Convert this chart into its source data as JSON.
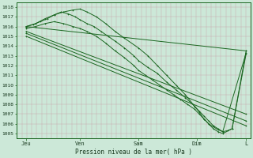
{
  "bg_color": "#cce8d8",
  "line_color": "#1a6620",
  "yticks": [
    1005,
    1006,
    1007,
    1008,
    1009,
    1010,
    1011,
    1012,
    1013,
    1014,
    1015,
    1016,
    1017,
    1018
  ],
  "ylim": [
    1004.5,
    1018.5
  ],
  "xlim": [
    0.0,
    1.0
  ],
  "xtick_positions": [
    0.04,
    0.27,
    0.52,
    0.77,
    0.98
  ],
  "xtick_labels": [
    "Jeu",
    "Ven",
    "Sam",
    "Dim",
    "L"
  ],
  "xlabel": "Pression niveau de la mer( hPa )",
  "vgrid_n": 48,
  "lines": [
    {
      "x": [
        0.04,
        0.98
      ],
      "y": [
        1016.0,
        1013.5
      ]
    },
    {
      "x": [
        0.04,
        0.98
      ],
      "y": [
        1015.5,
        1007.0
      ]
    },
    {
      "x": [
        0.04,
        0.98
      ],
      "y": [
        1015.3,
        1006.3
      ]
    },
    {
      "x": [
        0.04,
        0.98
      ],
      "y": [
        1015.0,
        1005.8
      ]
    },
    {
      "x": [
        0.04,
        0.08,
        0.12,
        0.16,
        0.2,
        0.24,
        0.27,
        0.3,
        0.34,
        0.38,
        0.42,
        0.46,
        0.52,
        0.56,
        0.6,
        0.64,
        0.68,
        0.72,
        0.76,
        0.78,
        0.8,
        0.82,
        0.84,
        0.86,
        0.88,
        0.92,
        0.98
      ],
      "y": [
        1016.0,
        1016.3,
        1016.8,
        1017.2,
        1017.5,
        1017.7,
        1017.8,
        1017.5,
        1017.0,
        1016.3,
        1015.5,
        1014.8,
        1013.8,
        1013.0,
        1012.0,
        1011.0,
        1010.0,
        1009.0,
        1007.8,
        1007.2,
        1006.5,
        1006.0,
        1005.5,
        1005.2,
        1005.0,
        1005.5,
        1013.5
      ]
    },
    {
      "x": [
        0.04,
        0.08,
        0.12,
        0.16,
        0.2,
        0.24,
        0.27,
        0.3,
        0.34,
        0.38,
        0.42,
        0.46,
        0.5,
        0.52,
        0.55,
        0.58,
        0.61,
        0.64,
        0.67,
        0.7,
        0.73,
        0.76,
        0.78,
        0.8,
        0.82,
        0.84,
        0.86,
        0.88,
        0.9,
        0.92,
        0.98
      ],
      "y": [
        1015.8,
        1016.0,
        1016.3,
        1016.5,
        1016.3,
        1016.0,
        1015.8,
        1015.5,
        1015.0,
        1014.3,
        1013.5,
        1012.8,
        1012.0,
        1011.5,
        1011.0,
        1010.5,
        1010.0,
        1009.5,
        1009.0,
        1008.5,
        1008.0,
        1007.5,
        1007.0,
        1006.5,
        1006.0,
        1005.7,
        1005.4,
        1005.2,
        1005.3,
        1005.5,
        1013.2
      ]
    },
    {
      "x": [
        0.04,
        0.07,
        0.1,
        0.13,
        0.16,
        0.19,
        0.22,
        0.25,
        0.27,
        0.3,
        0.33,
        0.36,
        0.39,
        0.42,
        0.46,
        0.5,
        0.52,
        0.56,
        0.6,
        0.64,
        0.68,
        0.72,
        0.76,
        0.78,
        0.8,
        0.82,
        0.84,
        0.86,
        0.88,
        0.98
      ],
      "y": [
        1016.0,
        1016.2,
        1016.5,
        1016.8,
        1017.2,
        1017.5,
        1017.3,
        1017.0,
        1016.7,
        1016.3,
        1016.0,
        1015.5,
        1015.0,
        1014.5,
        1013.8,
        1013.0,
        1012.5,
        1011.8,
        1011.2,
        1010.3,
        1009.5,
        1008.7,
        1007.8,
        1007.3,
        1006.8,
        1006.3,
        1005.8,
        1005.5,
        1005.2,
        1013.3
      ]
    }
  ]
}
